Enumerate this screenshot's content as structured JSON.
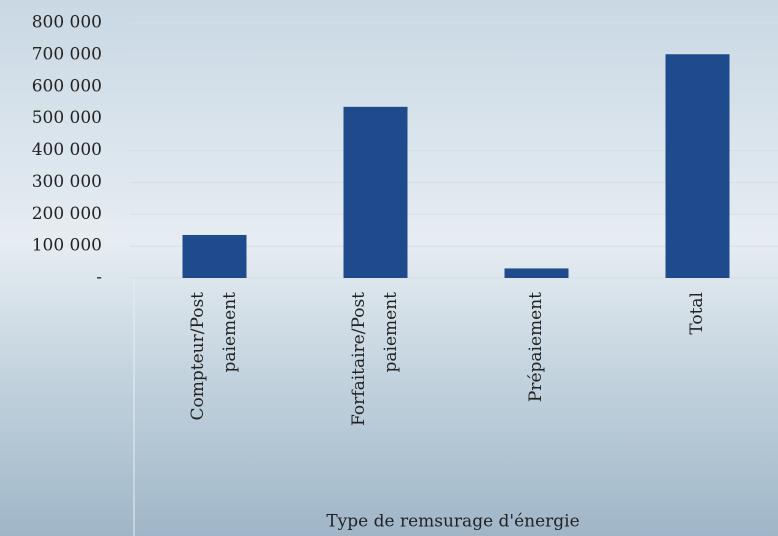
{
  "chart_data": {
    "type": "bar",
    "x_label": "Type de remsurage d'énergie",
    "categories": [
      "Compteur/Post paiement",
      "Forfaitaire/Post paiement",
      "Prépaiement",
      "Total"
    ],
    "values": [
      135000,
      537000,
      30000,
      702000
    ],
    "color": "#1f4a8c",
    "ylim": [
      0,
      800000
    ],
    "yticks": [
      {
        "value": 0,
        "label": "-"
      },
      {
        "value": 100000,
        "label": "100 000"
      },
      {
        "value": 200000,
        "label": "200 000"
      },
      {
        "value": 300000,
        "label": "300 000"
      },
      {
        "value": 400000,
        "label": "400 000"
      },
      {
        "value": 500000,
        "label": "500 000"
      },
      {
        "value": 600000,
        "label": "600 000"
      },
      {
        "value": 700000,
        "label": "700 000"
      },
      {
        "value": 800000,
        "label": "800 000"
      }
    ],
    "grid": true
  }
}
